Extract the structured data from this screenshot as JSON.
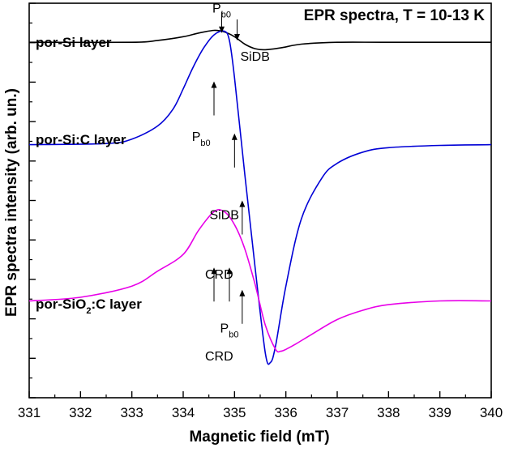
{
  "chart_data": {
    "type": "line",
    "title": "EPR spectra, T = 10-13 K",
    "xlabel": "Magnetic field (mT)",
    "ylabel": "EPR spectra intensity (arb. un.)",
    "xlim": [
      331,
      340
    ],
    "xticks": [
      "331",
      "332",
      "333",
      "334",
      "335",
      "336",
      "337",
      "338",
      "339",
      "340"
    ],
    "ylim": [
      -4.0,
      6.6
    ],
    "grid": false,
    "legend": "none (series labeled inline)",
    "series": [
      {
        "name_prefix": "por-Si layer",
        "name_sub": "",
        "name_suffix": "",
        "color": "#000000",
        "x": [
          331,
          333,
          333.5,
          334,
          334.3,
          334.6,
          334.8,
          335.0,
          335.2,
          335.4,
          335.6,
          335.9,
          336.3,
          337,
          338,
          340
        ],
        "y": [
          5.55,
          5.55,
          5.6,
          5.7,
          5.8,
          5.87,
          5.83,
          5.7,
          5.5,
          5.38,
          5.35,
          5.4,
          5.5,
          5.55,
          5.55,
          5.55
        ]
      },
      {
        "name_prefix": "por-Si:C layer",
        "name_sub": "",
        "name_suffix": "",
        "color": "#0000d6",
        "x": [
          331,
          332.5,
          333.0,
          333.5,
          333.8,
          334.0,
          334.2,
          334.4,
          334.6,
          334.8,
          334.9,
          335.0,
          335.2,
          335.4,
          335.6,
          335.7,
          335.8,
          336.0,
          336.3,
          336.7,
          337.0,
          337.5,
          338.0,
          339.0,
          340.0
        ],
        "y": [
          2.8,
          2.83,
          2.95,
          3.3,
          3.75,
          4.3,
          4.9,
          5.4,
          5.75,
          5.85,
          5.6,
          4.6,
          2.0,
          -0.5,
          -2.8,
          -3.05,
          -2.6,
          -1.0,
          0.8,
          1.9,
          2.3,
          2.6,
          2.72,
          2.78,
          2.8
        ]
      },
      {
        "name_prefix": "por-SiO",
        "name_sub": "2",
        "name_suffix": ":C layer",
        "color": "#e800e8",
        "x": [
          331,
          332.0,
          333.0,
          333.5,
          334.0,
          334.3,
          334.6,
          334.8,
          335.0,
          335.2,
          335.4,
          335.6,
          335.8,
          335.9,
          336.0,
          336.2,
          336.5,
          337.0,
          337.5,
          338.0,
          339.0,
          340.0
        ],
        "y": [
          -1.4,
          -1.3,
          -1.0,
          -0.6,
          -0.15,
          0.5,
          1.0,
          1.0,
          0.65,
          0.0,
          -0.95,
          -2.05,
          -2.7,
          -2.75,
          -2.7,
          -2.55,
          -2.3,
          -1.9,
          -1.65,
          -1.5,
          -1.4,
          -1.4
        ]
      }
    ],
    "annotations": [
      {
        "main": "P",
        "sub": "b0",
        "x": 334.75,
        "y": 6.35,
        "arrow_to_y": 5.8,
        "arrow_x": 334.75,
        "arrow_dir": "down"
      },
      {
        "main": "SiDB",
        "sub": "",
        "x": 335.4,
        "y": 5.05,
        "arrow_to_y": 5.6,
        "arrow_x": 335.05,
        "arrow_dir": "down"
      },
      {
        "main": "P",
        "sub": "b0",
        "x": 334.35,
        "y": 2.9,
        "arrow_to_y": 4.5,
        "arrow_x": 334.6,
        "arrow_dir": "up"
      },
      {
        "main": "SiDB",
        "sub": "",
        "x": 334.8,
        "y": 0.8,
        "arrow_to_y": 3.1,
        "arrow_x": 335.0,
        "arrow_dir": "up"
      },
      {
        "main": "CRD",
        "sub": "",
        "x": 334.7,
        "y": -0.8,
        "arrow_to_y": 1.3,
        "arrow_x": 335.15,
        "arrow_dir": "up"
      },
      {
        "main": "P",
        "sub": "b0",
        "x": 334.9,
        "y": -2.25,
        "arrow_to_y": -0.5,
        "arrow_x": 334.6,
        "arrow_dir": "up"
      },
      {
        "main": "",
        "sub": "",
        "x": 334.9,
        "y": -2.25,
        "arrow_to_y": -0.5,
        "arrow_x": 334.9,
        "arrow_dir": "up"
      },
      {
        "main": "CRD",
        "sub": "",
        "x": 334.7,
        "y": -3.0,
        "arrow_to_y": -1.1,
        "arrow_x": 335.15,
        "arrow_dir": "up"
      }
    ]
  }
}
